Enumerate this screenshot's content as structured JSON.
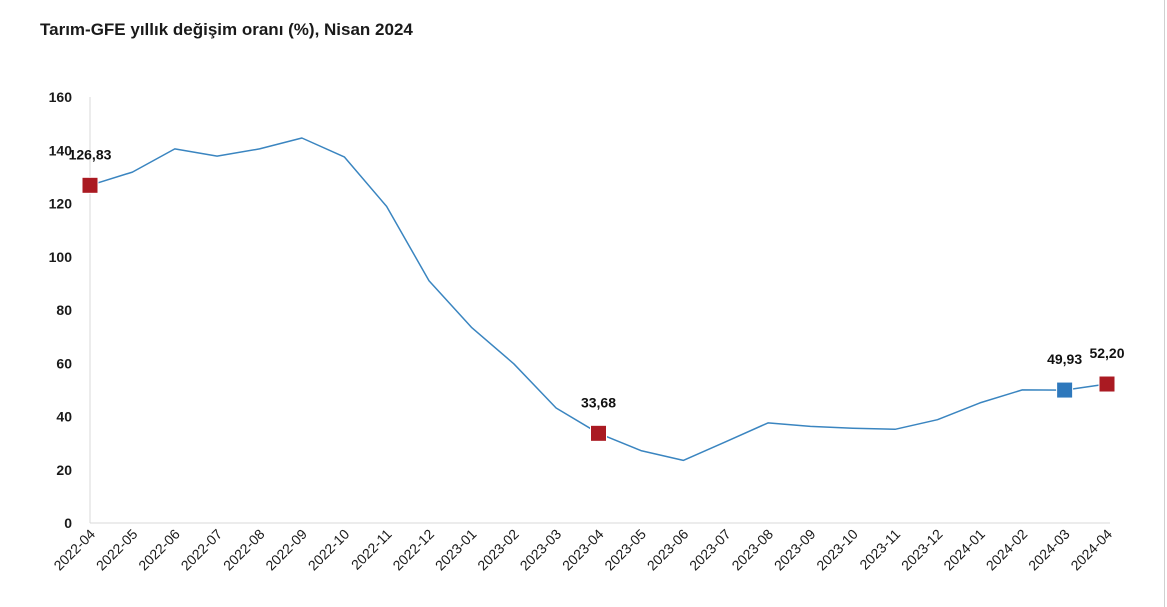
{
  "chart_data": {
    "type": "line",
    "title": "Tarım-GFE yıllık değişim oranı (%), Nisan 2024",
    "xlabel": "",
    "ylabel": "",
    "ylim": [
      0,
      160
    ],
    "yticks": [
      "0",
      "20",
      "40",
      "60",
      "80",
      "100",
      "120",
      "140",
      "160"
    ],
    "grid": false,
    "legend": "none",
    "categories": [
      "2022-04",
      "2022-05",
      "2022-06",
      "2022-07",
      "2022-08",
      "2022-09",
      "2022-10",
      "2022-11",
      "2022-12",
      "2023-01",
      "2023-02",
      "2023-03",
      "2023-04",
      "2023-05",
      "2023-06",
      "2023-07",
      "2023-08",
      "2023-09",
      "2023-10",
      "2023-11",
      "2023-12",
      "2024-01",
      "2024-02",
      "2024-03",
      "2024-04"
    ],
    "series": [
      {
        "color": "#3a85c0",
        "values": [
          126.83,
          131.8,
          140.5,
          137.8,
          140.5,
          144.6,
          137.5,
          118.9,
          91.0,
          73.5,
          59.8,
          43.2,
          33.68,
          27.2,
          23.5,
          30.5,
          37.6,
          36.3,
          35.6,
          35.2,
          38.8,
          45.1,
          50.0,
          49.93,
          52.2
        ]
      }
    ],
    "highlighted_points": [
      {
        "index": 0,
        "label": "126,83",
        "color": "#aa1a22"
      },
      {
        "index": 12,
        "label": "33,68",
        "color": "#aa1a22"
      },
      {
        "index": 23,
        "label": "49,93",
        "color": "#2e78bc"
      },
      {
        "index": 24,
        "label": "52,20",
        "color": "#aa1a22"
      }
    ]
  }
}
